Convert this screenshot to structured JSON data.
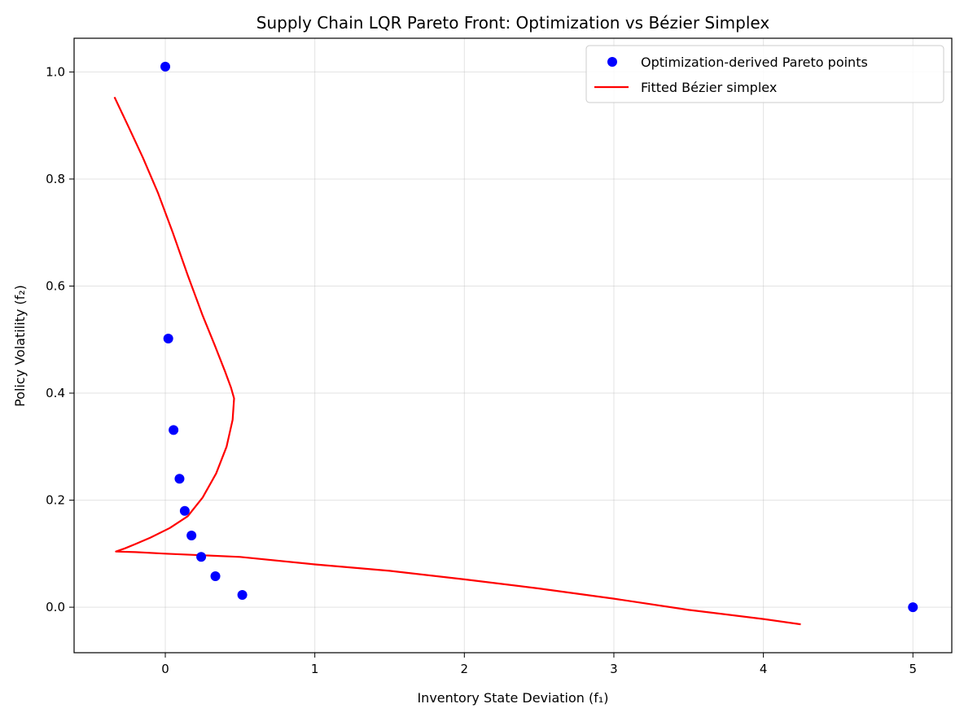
{
  "chart_data": {
    "type": "scatter",
    "title": "Supply Chain LQR Pareto Front: Optimization vs Bézier Simplex",
    "xlabel": "Inventory State Deviation (f₁)",
    "ylabel": "Policy Volatility (f₂)",
    "xlim": [
      -0.61,
      5.26
    ],
    "ylim": [
      -0.085,
      1.063
    ],
    "xticks": [
      0,
      1,
      2,
      3,
      4,
      5
    ],
    "yticks": [
      0.0,
      0.2,
      0.4,
      0.6,
      0.8,
      1.0
    ],
    "xtick_labels": [
      "0",
      "1",
      "2",
      "3",
      "4",
      "5"
    ],
    "ytick_labels": [
      "0.0",
      "0.2",
      "0.4",
      "0.6",
      "0.8",
      "1.0"
    ],
    "grid": true,
    "legend_position": "top-right",
    "series": [
      {
        "name": "Optimization-derived Pareto points",
        "kind": "scatter",
        "color": "#0000ff",
        "x": [
          0.0,
          0.02,
          0.055,
          0.095,
          0.13,
          0.175,
          0.24,
          0.335,
          0.515,
          5.0
        ],
        "y": [
          1.01,
          0.502,
          0.331,
          0.24,
          0.18,
          0.134,
          0.094,
          0.058,
          0.023,
          0.0
        ]
      },
      {
        "name": "Fitted Bézier simplex",
        "kind": "line",
        "color": "#ff0000",
        "x": [
          -0.34,
          -0.25,
          -0.15,
          -0.05,
          0.05,
          0.15,
          0.25,
          0.33,
          0.4,
          0.44,
          0.46,
          0.45,
          0.41,
          0.34,
          0.25,
          0.15,
          0.03,
          -0.1,
          -0.2,
          -0.27,
          -0.33,
          -0.2,
          0.0,
          0.5,
          1.0,
          1.5,
          2.0,
          2.5,
          3.0,
          3.5,
          4.0,
          4.25
        ],
        "y": [
          0.953,
          0.9,
          0.84,
          0.775,
          0.7,
          0.62,
          0.545,
          0.49,
          0.44,
          0.41,
          0.39,
          0.35,
          0.3,
          0.25,
          0.205,
          0.17,
          0.148,
          0.13,
          0.118,
          0.11,
          0.104,
          0.103,
          0.1,
          0.094,
          0.08,
          0.068,
          0.052,
          0.035,
          0.016,
          -0.005,
          -0.022,
          -0.032
        ]
      }
    ]
  }
}
